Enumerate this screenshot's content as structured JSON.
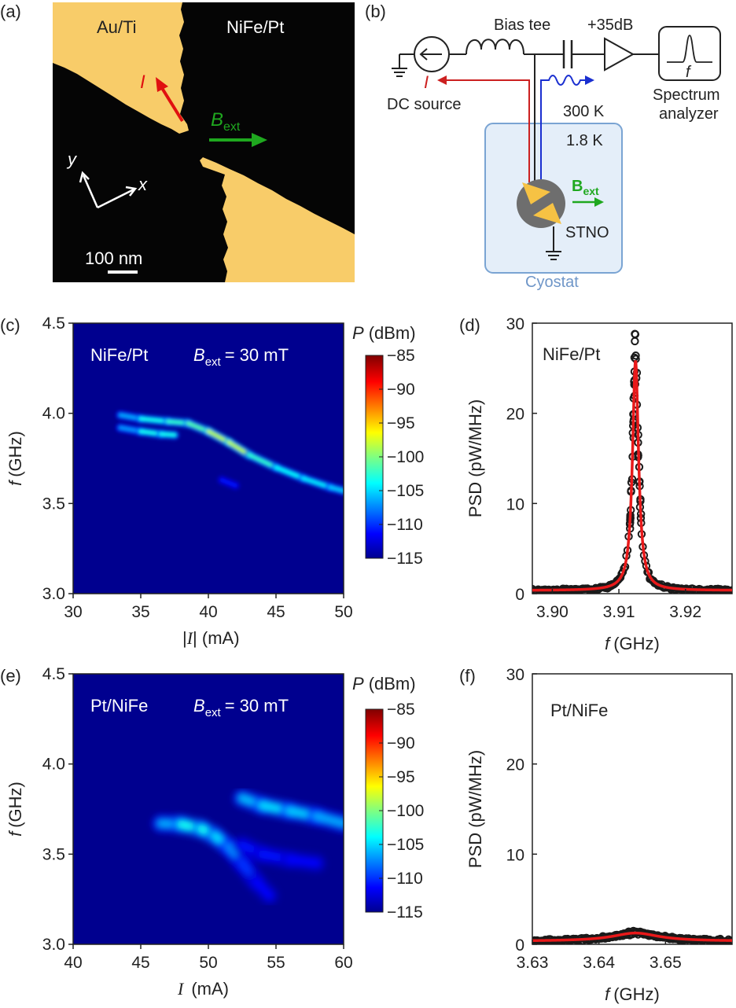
{
  "panel_labels": [
    "(a)",
    "(b)",
    "(c)",
    "(d)",
    "(e)",
    "(f)"
  ],
  "micrograph": {
    "left_label": "Au/Ti",
    "right_label": "NiFe/Pt",
    "current_label": "I",
    "field_label": "B",
    "field_sub": "ext",
    "axis_y": "y",
    "axis_x": "x",
    "scale_bar": "100 nm",
    "colors": {
      "background": "#050505",
      "gold": "#f8cc69",
      "current_arrow": "#e01010",
      "field_arrow": "#1fa81f",
      "axes_arrows": "#ffffff"
    }
  },
  "schematic": {
    "bias_tee": "Bias tee",
    "amplifier": "+35dB",
    "dc_source": "DC source",
    "current_label": "I",
    "temp_high": "300 K",
    "temp_low": "1.8 K",
    "analyzer_line1": "Spectrum",
    "analyzer_line2": "analyzer",
    "analyzer_f": "f",
    "stno": "STNO",
    "cryostat": "Cyostat",
    "field_label": "B",
    "field_sub": "ext",
    "colors": {
      "cryostat_fill": "#e4eef9",
      "cryostat_border": "#7aa4d3",
      "dc_arrow": "#cc2020",
      "rf_arrow": "#1a2fd0",
      "field_arrow": "#1fa81f",
      "stno_disk": "#6e6e6e",
      "stno_triangles": "#f6c244"
    }
  },
  "chart_data": [
    {
      "panel": "(c)",
      "type": "heatmap",
      "annotation": "NiFe/Pt",
      "field_label": "B",
      "field_sub": "ext",
      "field_value": "= 30 mT",
      "xlabel": "|I| (mA)",
      "xlabel_var": "I",
      "xlabel_unit": "(mA)",
      "ylabel_var": "f",
      "ylabel_unit": "(GHz)",
      "xlim": [
        30,
        50
      ],
      "ylim": [
        3.0,
        4.5
      ],
      "xticks": [
        "30",
        "35",
        "40",
        "45",
        "50"
      ],
      "yticks": [
        "3.0",
        "3.5",
        "4.0",
        "4.5"
      ],
      "colorbar": {
        "label_var": "P",
        "label_unit": "(dBm)",
        "range": [
          -115,
          -85
        ],
        "ticks": [
          "-85",
          "-90",
          "-95",
          "-100",
          "-105",
          "-110",
          "-115"
        ]
      },
      "background_level_dbm": -115,
      "features": [
        {
          "name": "main mode",
          "points": [
            [
              33.5,
              3.99
            ],
            [
              35,
              3.97
            ],
            [
              37,
              3.955
            ],
            [
              38.5,
              3.945
            ],
            [
              40,
              3.9
            ],
            [
              41.5,
              3.84
            ],
            [
              43,
              3.77
            ],
            [
              45,
              3.7
            ],
            [
              47,
              3.64
            ],
            [
              49,
              3.59
            ],
            [
              50,
              3.57
            ]
          ],
          "peak_dbm": [
            -109,
            -104,
            -103,
            -102,
            -101,
            -96,
            -101,
            -104,
            -104,
            -105,
            -106
          ]
        },
        {
          "name": "lower branch",
          "points": [
            [
              33.5,
              3.92
            ],
            [
              35,
              3.9
            ],
            [
              36.5,
              3.885
            ],
            [
              37.5,
              3.88
            ]
          ],
          "peak_dbm": [
            -110,
            -104,
            -103,
            -104
          ]
        },
        {
          "name": "faint satellite",
          "points": [
            [
              41,
              3.63
            ],
            [
              42,
              3.6
            ]
          ],
          "peak_dbm": [
            -111,
            -111
          ]
        }
      ]
    },
    {
      "panel": "(d)",
      "type": "scatter",
      "annotation": "NiFe/Pt",
      "xlabel_var": "f",
      "xlabel_unit": "(GHz)",
      "ylabel": "PSD (pW/MHz)",
      "xlim": [
        3.897,
        3.927
      ],
      "ylim": [
        0,
        30
      ],
      "xticks": [
        3.9,
        3.91,
        3.92
      ],
      "xtick_labels": [
        "3.90",
        "3.91",
        "3.92"
      ],
      "yticks": [
        0,
        10,
        20,
        30
      ],
      "ytick_labels": [
        "0",
        "10",
        "20",
        "30"
      ],
      "series": [
        {
          "kind": "points",
          "color": "#1a1a1a"
        },
        {
          "kind": "lorentzian_fit",
          "color": "#e8191a",
          "center": 3.9125,
          "fwhm": 0.0011,
          "amplitude": 25.5,
          "offset": 0.35
        }
      ],
      "peak_points": [
        [
          3.9124,
          28.8
        ],
        [
          3.9124,
          28.0
        ],
        [
          3.9127,
          24.5
        ]
      ]
    },
    {
      "panel": "(e)",
      "type": "heatmap",
      "annotation": "Pt/NiFe",
      "field_label": "B",
      "field_sub": "ext",
      "field_value": "= 30 mT",
      "xlabel_var": "I",
      "xlabel_unit": "(mA)",
      "ylabel_var": "f",
      "ylabel_unit": "(GHz)",
      "xlim": [
        40,
        60
      ],
      "ylim": [
        3.0,
        4.5
      ],
      "xticks": [
        "40",
        "45",
        "50",
        "55",
        "60"
      ],
      "yticks": [
        "3.0",
        "3.5",
        "4.0",
        "4.5"
      ],
      "colorbar": {
        "label_var": "P",
        "label_unit": "(dBm)",
        "range": [
          -115,
          -85
        ],
        "ticks": [
          "-85",
          "-90",
          "-95",
          "-100",
          "-105",
          "-110",
          "-115"
        ]
      },
      "background_level_dbm": -115,
      "features": [
        {
          "name": "low-current mode",
          "points": [
            [
              46.5,
              3.67
            ],
            [
              48,
              3.665
            ],
            [
              49.5,
              3.64
            ],
            [
              50.5,
              3.6
            ],
            [
              51.5,
              3.54
            ],
            [
              52.5,
              3.45
            ],
            [
              53.5,
              3.35
            ],
            [
              54.5,
              3.27
            ]
          ],
          "peak_dbm": [
            -109,
            -104,
            -103,
            -104,
            -106,
            -109,
            -111,
            -112
          ]
        },
        {
          "name": "high-current band",
          "points": [
            [
              52.5,
              3.81
            ],
            [
              54,
              3.77
            ],
            [
              56,
              3.74
            ],
            [
              58,
              3.71
            ],
            [
              60,
              3.67
            ]
          ],
          "peak_dbm": [
            -107,
            -105,
            -105,
            -106,
            -107
          ]
        },
        {
          "name": "lower smear",
          "points": [
            [
              52.5,
              3.55
            ],
            [
              54,
              3.5
            ],
            [
              56,
              3.47
            ],
            [
              58,
              3.45
            ]
          ],
          "peak_dbm": [
            -111,
            -111,
            -111,
            -112
          ]
        }
      ]
    },
    {
      "panel": "(f)",
      "type": "scatter",
      "annotation": "Pt/NiFe",
      "xlabel_var": "f",
      "xlabel_unit": "(GHz)",
      "ylabel": "PSD (pW/MHz)",
      "xlim": [
        3.63,
        3.66
      ],
      "ylim": [
        0,
        30
      ],
      "xticks": [
        3.63,
        3.64,
        3.65
      ],
      "xtick_labels": [
        "3.63",
        "3.64",
        "3.65"
      ],
      "yticks": [
        0,
        10,
        20,
        30
      ],
      "ytick_labels": [
        "0",
        "10",
        "20",
        "30"
      ],
      "series": [
        {
          "kind": "points",
          "color": "#1a1a1a"
        },
        {
          "kind": "lorentzian_fit",
          "color": "#e8191a",
          "center": 3.6455,
          "fwhm": 0.0085,
          "amplitude": 0.9,
          "offset": 0.35
        }
      ]
    }
  ]
}
